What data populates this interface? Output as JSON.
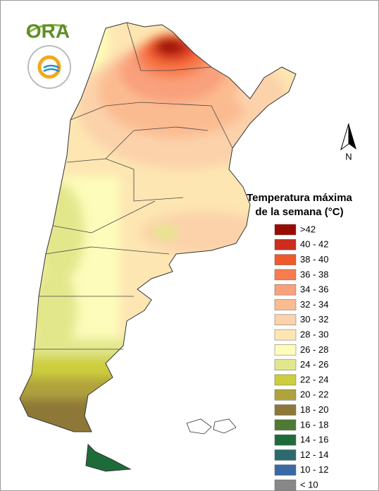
{
  "logo": {
    "text": "ORA"
  },
  "north_label": "N",
  "legend": {
    "title": [
      "Temperatura máxima",
      "de la semana (°C)"
    ],
    "items": [
      {
        "label": ">42",
        "color": "#990a00"
      },
      {
        "label": "40 - 42",
        "color": "#cc2d1c"
      },
      {
        "label": "38 - 40",
        "color": "#f05a2a"
      },
      {
        "label": "36 - 38",
        "color": "#f87c4e"
      },
      {
        "label": "34 - 36",
        "color": "#f9a07c"
      },
      {
        "label": "32 - 34",
        "color": "#fbbb90"
      },
      {
        "label": "30 - 32",
        "color": "#fcd2aa"
      },
      {
        "label": "28 - 30",
        "color": "#fde6b2"
      },
      {
        "label": "26 - 28",
        "color": "#fdfcba"
      },
      {
        "label": "24 - 26",
        "color": "#e3e78c"
      },
      {
        "label": "22 - 24",
        "color": "#cdce3e"
      },
      {
        "label": "20 - 22",
        "color": "#b0a33e"
      },
      {
        "label": "18 - 20",
        "color": "#8e7838"
      },
      {
        "label": "16 - 18",
        "color": "#4f7a35"
      },
      {
        "label": "14 - 16",
        "color": "#1e6b3a"
      },
      {
        "label": "12 - 14",
        "color": "#2b6a6e"
      },
      {
        "label": "10 - 12",
        "color": "#3a69a8"
      },
      {
        "label": "< 10",
        "color": "#888888"
      }
    ]
  }
}
